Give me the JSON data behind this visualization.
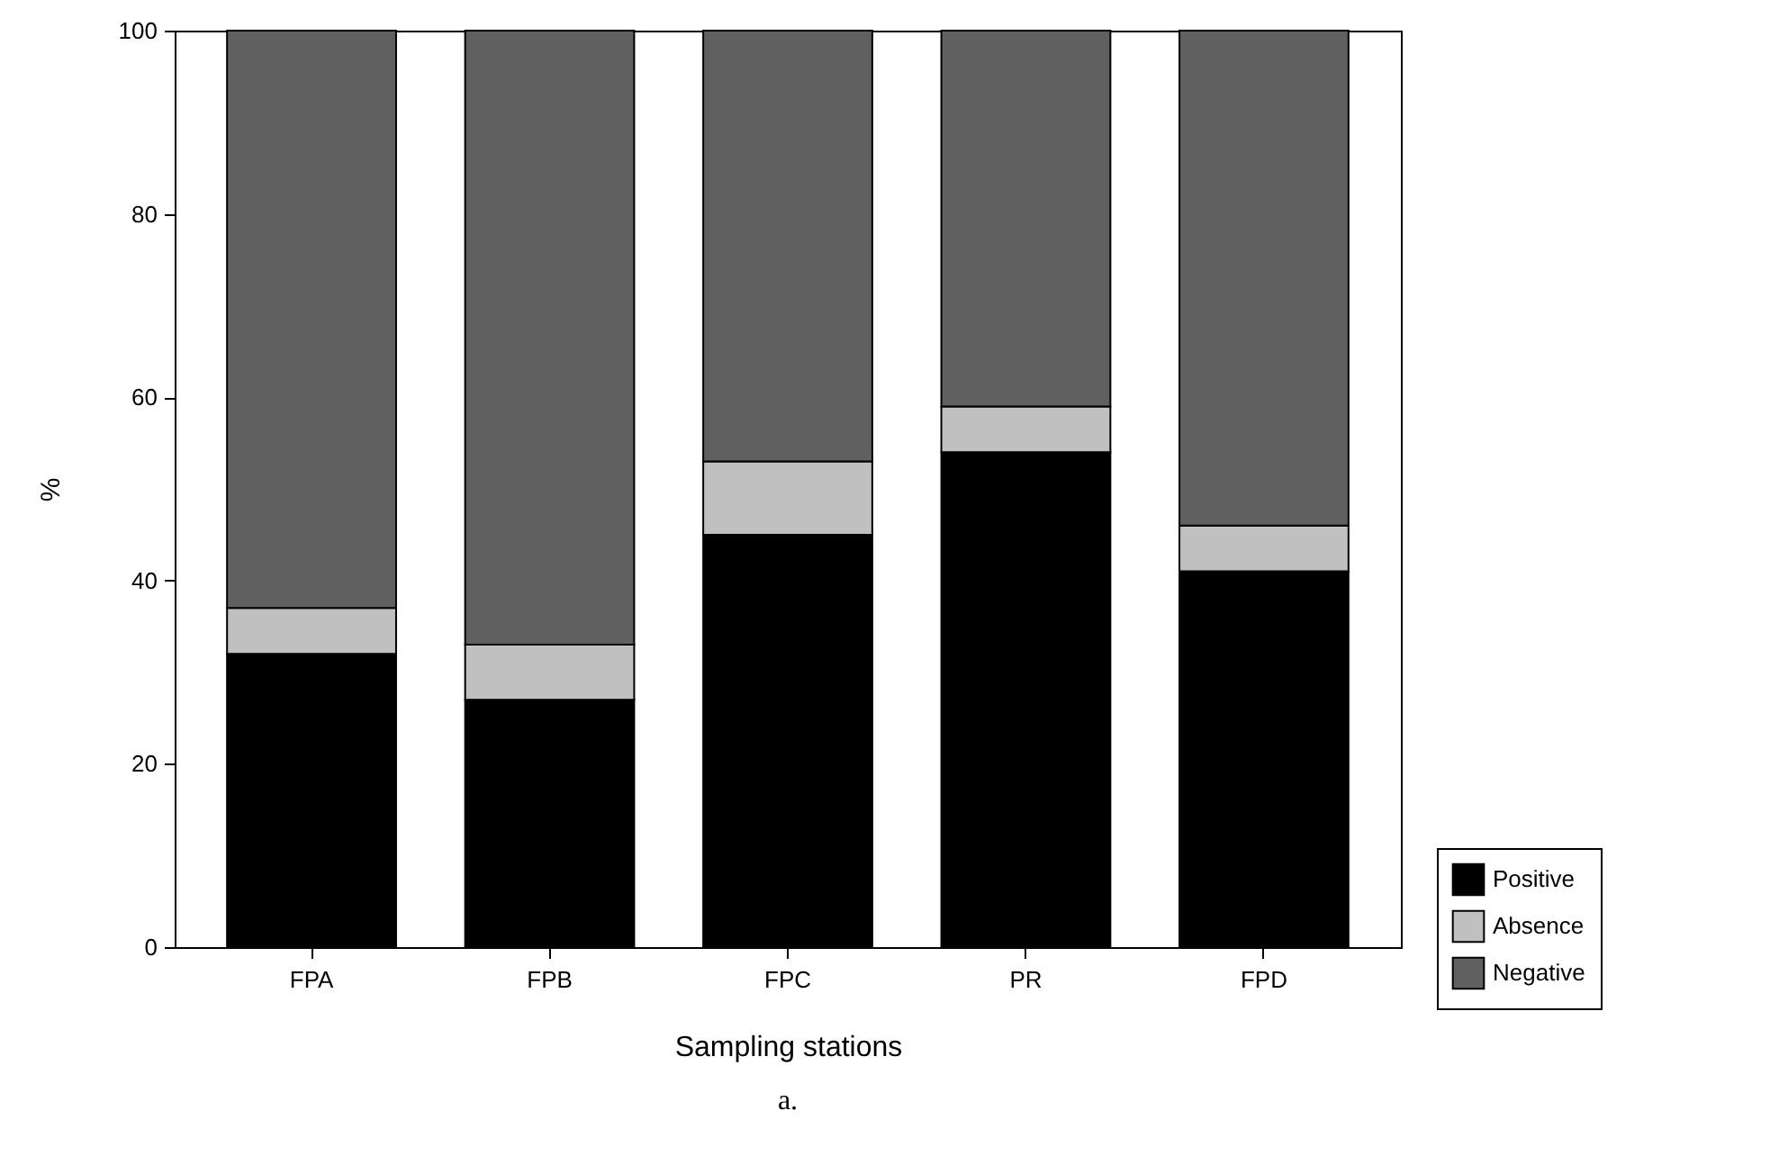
{
  "chart_data": {
    "type": "bar",
    "stacked": true,
    "xlabel": "Sampling stations",
    "ylabel": "%",
    "annotations": [
      "a."
    ],
    "categories": [
      "FPA",
      "FPB",
      "FPC",
      "PR",
      "FPD"
    ],
    "series": [
      {
        "name": "Positive",
        "color": "#000000",
        "values": [
          32,
          27,
          45,
          54,
          41
        ]
      },
      {
        "name": "Absence",
        "color": "#c0c0c0",
        "values": [
          5,
          6,
          8,
          5,
          5
        ]
      },
      {
        "name": "Negative",
        "color": "#606060",
        "values": [
          63,
          67,
          47,
          41,
          54
        ]
      }
    ],
    "ylim": [
      0,
      100
    ],
    "yticks": [
      0,
      20,
      40,
      60,
      80,
      100
    ],
    "grid": false,
    "legend": "right"
  }
}
